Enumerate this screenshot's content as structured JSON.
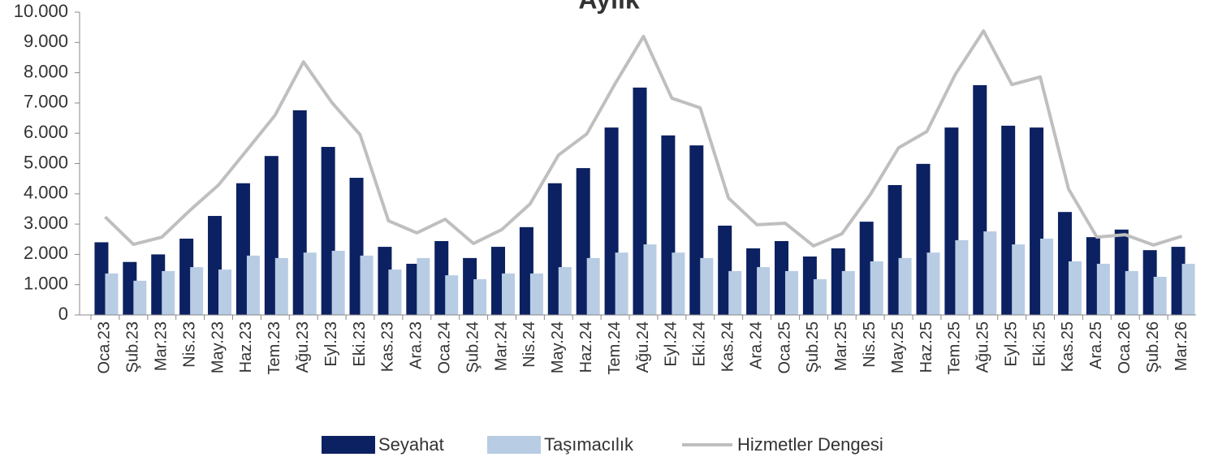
{
  "chart_data": {
    "type": "bar_line",
    "title": "Aylık",
    "categories": [
      "Oca.23",
      "Şub.23",
      "Mar.23",
      "Nis.23",
      "May.23",
      "Haz.23",
      "Tem.23",
      "Ağu.23",
      "Eyl.23",
      "Eki.23",
      "Kas.23",
      "Ara.23",
      "Oca.24",
      "Şub.24",
      "Mar.24",
      "Nis.24",
      "May.24",
      "Haz.24",
      "Tem.24",
      "Ağu.24",
      "Eyl.24",
      "Eki.24",
      "Kas.24",
      "Ara.24",
      "Oca.25",
      "Şub.25",
      "Mar.25",
      "Nis.25",
      "May.25",
      "Haz.25",
      "Tem.25",
      "Ağu.25",
      "Eyl.25",
      "Eki.25",
      "Kas.25",
      "Ara.25",
      "Oca.26",
      "Şub.26",
      "Mar.26"
    ],
    "series": [
      {
        "name": "Seyahat",
        "type": "bar",
        "color": "#0c2161",
        "values": [
          2400,
          1750,
          2000,
          2520,
          3270,
          4350,
          5250,
          6760,
          5550,
          4530,
          2250,
          1690,
          2440,
          1880,
          2250,
          2900,
          4350,
          4850,
          6190,
          7510,
          5930,
          5600,
          2950,
          2200,
          2440,
          1930,
          2200,
          3080,
          4290,
          4990,
          6190,
          7590,
          6250,
          6190,
          3400,
          2570,
          2820,
          2140,
          2250
        ]
      },
      {
        "name": "Taşımacılık",
        "type": "bar",
        "color": "#b8cce4",
        "values": [
          1370,
          1130,
          1450,
          1580,
          1500,
          1960,
          1880,
          2060,
          2120,
          1960,
          1500,
          1880,
          1310,
          1180,
          1370,
          1370,
          1580,
          1880,
          2060,
          2330,
          2060,
          1880,
          1450,
          1580,
          1450,
          1180,
          1450,
          1770,
          1880,
          2060,
          2470,
          2760,
          2330,
          2520,
          1770,
          1690,
          1450,
          1260,
          1690
        ]
      },
      {
        "name": "Hizmetler Dengesi",
        "type": "line",
        "color": "#bfbfbf",
        "values": [
          3240,
          2330,
          2570,
          3460,
          4290,
          5440,
          6600,
          8360,
          7020,
          5950,
          3110,
          2710,
          3160,
          2360,
          2820,
          3670,
          5280,
          5980,
          7640,
          9200,
          7160,
          6840,
          3860,
          2980,
          3030,
          2280,
          2680,
          3970,
          5520,
          6060,
          7940,
          9380,
          7610,
          7860,
          4160,
          2570,
          2650,
          2310,
          2600
        ]
      }
    ],
    "ylim": [
      0,
      10000
    ],
    "yticks": [
      0,
      {
        "value": 1000,
        "label": "1.000"
      },
      {
        "value": 2000,
        "label": "2.000"
      },
      {
        "value": 3000,
        "label": "3.000"
      },
      {
        "value": 4000,
        "label": "4.000"
      },
      {
        "value": 5000,
        "label": "5.000"
      },
      {
        "value": 6000,
        "label": "6.000"
      },
      {
        "value": 7000,
        "label": "7.000"
      },
      {
        "value": 8000,
        "label": "8.000"
      },
      {
        "value": 9000,
        "label": "9.000"
      },
      {
        "value": 10000,
        "label": "10.000"
      }
    ],
    "legend": "bottom"
  }
}
